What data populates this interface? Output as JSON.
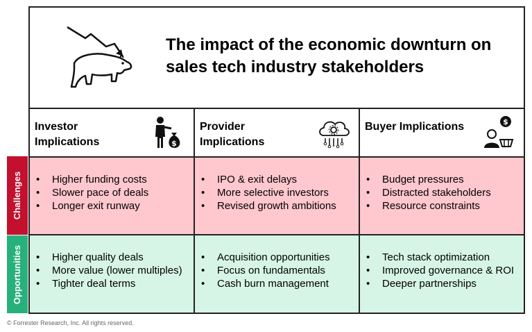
{
  "title": "The impact of the economic downturn on sales tech industry stakeholders",
  "icons": {
    "title": "bear-market-icon",
    "investor": "investor-money-bag-icon",
    "provider": "cloud-tech-icon",
    "buyer": "buyer-cart-icon"
  },
  "row_labels": {
    "challenges": "Challenges",
    "opportunities": "Opportunities"
  },
  "columns": [
    {
      "heading": "Investor Implications",
      "challenges": [
        "Higher funding costs",
        "Slower pace of deals",
        "Longer exit runway"
      ],
      "opportunities": [
        "Higher quality deals",
        "More value (lower multiples)",
        "Tighter deal terms"
      ]
    },
    {
      "heading": "Provider Implications",
      "challenges": [
        "IPO & exit delays",
        "More selective investors",
        "Revised growth ambitions"
      ],
      "opportunities": [
        "Acquisition opportunities",
        "Focus on fundamentals",
        "Cash burn management"
      ]
    },
    {
      "heading": "Buyer Implications",
      "challenges": [
        "Budget pressures",
        "Distracted stakeholders",
        "Resource constraints"
      ],
      "opportunities": [
        "Tech stack optimization",
        "Improved governance & ROI",
        "Deeper partnerships"
      ]
    }
  ],
  "colors": {
    "challenges_tab": "#c3102f",
    "challenges_bg": "#ffc7ce",
    "opportunities_tab": "#27b07b",
    "opportunities_bg": "#d6f5e6"
  },
  "footer": "© Forrester Research, Inc. All rights reserved."
}
